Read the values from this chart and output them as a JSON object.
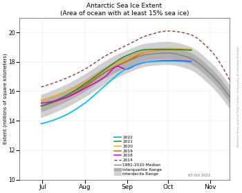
{
  "title_line1": "Antarctic Sea Ice Extent",
  "title_line2": "(Area of ocean with at least 15% sea ice)",
  "ylabel": "Extent (millions of square kilometers)",
  "watermark": "National Snow and Ice Data Center, University of Colorado Boulder",
  "date_label": "03 Oct 2022",
  "ylim": [
    10,
    21
  ],
  "yticks": [
    10,
    12,
    14,
    16,
    18,
    20
  ],
  "colors": {
    "2022": "#00bfff",
    "2021": "#228B22",
    "2020": "#FFA500",
    "2019": "#CC6600",
    "2018": "#CC00CC",
    "2014": "#8B3A3A",
    "median": "#808080",
    "iqr": "#b0b0b0",
    "idr": "#d0d0d0"
  },
  "x_tick_labels": [
    "Jul",
    "Aug",
    "Sep",
    "Oct",
    "Nov"
  ],
  "x_tick_positions": [
    15,
    46,
    77,
    107,
    138
  ],
  "x_range": [
    -2,
    152
  ]
}
